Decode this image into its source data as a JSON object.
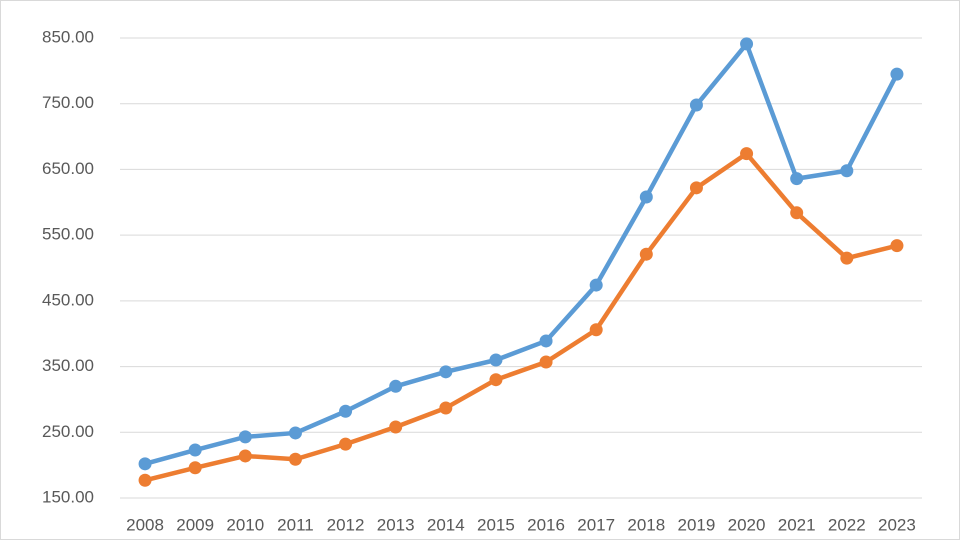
{
  "chart_data": {
    "type": "line",
    "categories": [
      "2008",
      "2009",
      "2010",
      "2011",
      "2012",
      "2013",
      "2014",
      "2015",
      "2016",
      "2017",
      "2018",
      "2019",
      "2020",
      "2021",
      "2022",
      "2023"
    ],
    "series": [
      {
        "color": "#5b9bd5",
        "values": [
          202,
          223,
          243,
          249,
          282,
          320,
          342,
          360,
          389,
          474,
          608,
          748,
          841,
          636,
          648,
          795
        ]
      },
      {
        "color": "#ed7d31",
        "values": [
          177,
          196,
          214,
          209,
          232,
          258,
          287,
          330,
          357,
          406,
          521,
          622,
          674,
          584,
          515,
          534
        ]
      }
    ],
    "ylim": [
      150,
      850
    ],
    "yticks": [
      {
        "value": 150,
        "label": "150.00"
      },
      {
        "value": 250,
        "label": "250.00"
      },
      {
        "value": 350,
        "label": "350.00"
      },
      {
        "value": 450,
        "label": "450.00"
      },
      {
        "value": 550,
        "label": "550.00"
      },
      {
        "value": 650,
        "label": "650.00"
      },
      {
        "value": 750,
        "label": "750.00"
      },
      {
        "value": 850,
        "label": "850.00"
      }
    ],
    "grid": true
  }
}
